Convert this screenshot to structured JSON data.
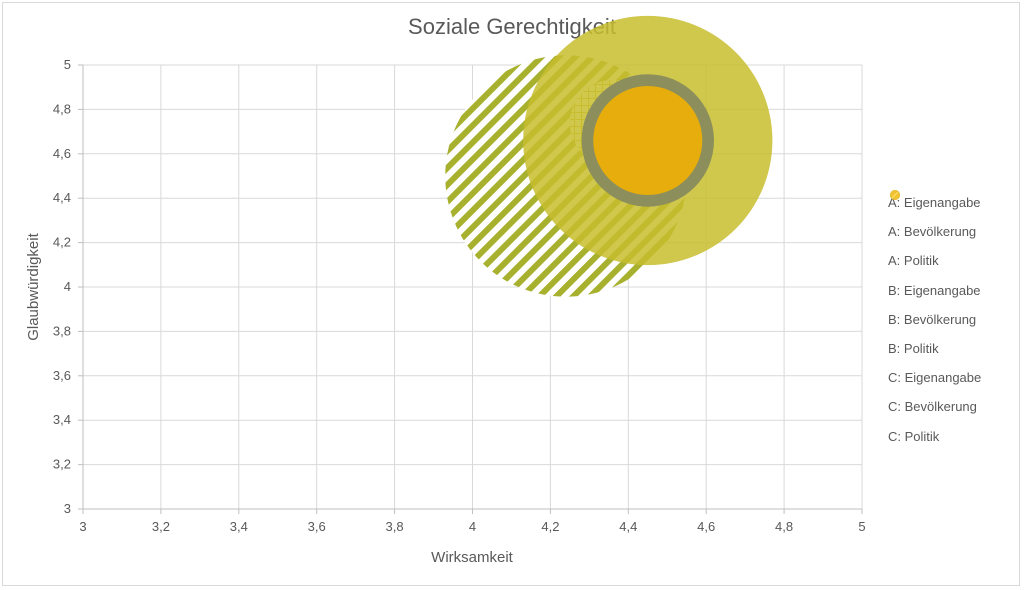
{
  "chart_data": {
    "type": "bubble",
    "title": "Soziale Gerechtigkeit",
    "xlabel": "Wirksamkeit",
    "ylabel": "Glaubwürdigkeit",
    "xlim": [
      3,
      5
    ],
    "ylim": [
      3,
      5
    ],
    "x_ticks": [
      "3",
      "3,2",
      "3,4",
      "3,6",
      "3,8",
      "4",
      "4,2",
      "4,4",
      "4,6",
      "4,8",
      "5"
    ],
    "y_ticks": [
      "3",
      "3,2",
      "3,4",
      "3,6",
      "3,8",
      "4",
      "4,2",
      "4,4",
      "4,6",
      "4,8",
      "5"
    ],
    "grid": true,
    "legend_position": "right",
    "series": [
      {
        "name": "A: Eigenangabe",
        "pattern": "grid",
        "color": "#c8bd2e",
        "x": 4.36,
        "y": 4.74,
        "size": 0.11
      },
      {
        "name": "A: Bevölkerung",
        "pattern": "grid",
        "color": "#8c8f5c",
        "x": 4.36,
        "y": 4.74,
        "size": 0.0
      },
      {
        "name": "A: Politik",
        "pattern": "grid",
        "color": "#f1c232",
        "x": 4.36,
        "y": 4.74,
        "size": 0.0
      },
      {
        "name": "B: Eigenangabe",
        "pattern": "solid",
        "color": "#c8bd2e",
        "x": 4.45,
        "y": 4.66,
        "size": 0.32
      },
      {
        "name": "B: Bevölkerung",
        "pattern": "solid",
        "color": "#8c8f5c",
        "x": 4.45,
        "y": 4.66,
        "size": 0.17
      },
      {
        "name": "B: Politik",
        "pattern": "solid",
        "color": "#f1c232",
        "x": 4.45,
        "y": 4.66,
        "size": 0.14
      },
      {
        "name": "C: Eigenangabe",
        "pattern": "stripes",
        "color": "#a8b12e",
        "x": 4.24,
        "y": 4.5,
        "size": 0.31
      },
      {
        "name": "C: Bevölkerung",
        "pattern": "stripes",
        "color": "#7f8a35",
        "x": 4.24,
        "y": 4.5,
        "size": 0.0
      },
      {
        "name": "C: Politik",
        "pattern": "stripes",
        "color": "#ffd54a",
        "x": 4.24,
        "y": 4.5,
        "size": 0.0
      }
    ]
  }
}
